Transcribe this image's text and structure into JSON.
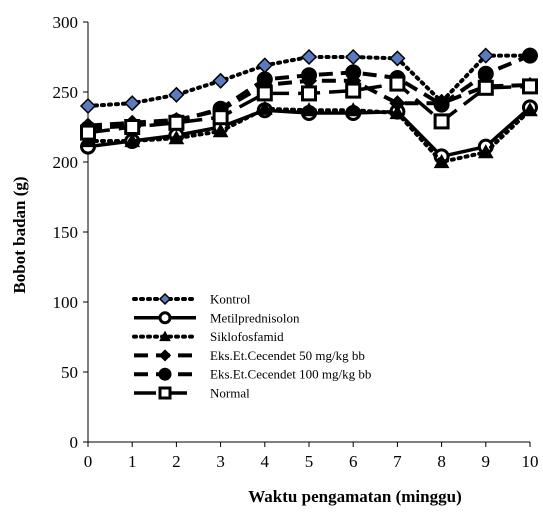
{
  "chart_data": {
    "type": "line",
    "xlabel": "Waktu pengamatan (minggu)",
    "ylabel": "Bobot badan (g)",
    "ylim": [
      0,
      300
    ],
    "xlim": [
      0,
      10
    ],
    "x": [
      0,
      1,
      2,
      3,
      4,
      5,
      6,
      7,
      8,
      9,
      10
    ],
    "xticks": [
      "0",
      "1",
      "2",
      "3",
      "4",
      "5",
      "6",
      "7",
      "8",
      "9",
      "10"
    ],
    "yticks": [
      "0",
      "50",
      "100",
      "150",
      "200",
      "250",
      "300"
    ],
    "grid": false,
    "legend_position": "center-left",
    "series": [
      {
        "name": "Kontrol",
        "values": [
          240,
          242,
          248,
          258,
          269,
          275,
          275,
          274,
          243,
          276,
          276
        ],
        "line_style": "dotted",
        "marker": "diamond",
        "marker_fill": "#5b7bc0",
        "color": "#000000"
      },
      {
        "name": "Metilprednisolon",
        "values": [
          211,
          215,
          219,
          225,
          237,
          235,
          235,
          236,
          204,
          211,
          239
        ],
        "line_style": "solid",
        "marker": "circle",
        "marker_fill": "#ffffff",
        "color": "#000000"
      },
      {
        "name": "Siklofosfamid",
        "values": [
          215,
          215,
          217,
          222,
          238,
          237,
          237,
          235,
          200,
          207,
          237
        ],
        "line_style": "dotted",
        "marker": "triangle",
        "marker_fill": "#000000",
        "color": "#000000"
      },
      {
        "name": "Eks.Et.Cecendet 50 mg/kg bb",
        "values": [
          226,
          228,
          230,
          237,
          255,
          258,
          258,
          242,
          242,
          254,
          255
        ],
        "line_style": "dashed",
        "marker": "diamond",
        "marker_fill": "#000000",
        "color": "#000000"
      },
      {
        "name": "Eks.Et.Cecendet 100 mg/kg bb",
        "values": [
          224,
          226,
          229,
          238,
          259,
          262,
          264,
          260,
          241,
          263,
          276
        ],
        "line_style": "dashed",
        "marker": "circle",
        "marker_fill": "#000000",
        "color": "#000000"
      },
      {
        "name": "Normal",
        "values": [
          221,
          225,
          228,
          232,
          249,
          249,
          251,
          256,
          229,
          253,
          254
        ],
        "line_style": "longdash",
        "marker": "square",
        "marker_fill": "#ffffff",
        "color": "#000000"
      }
    ]
  }
}
